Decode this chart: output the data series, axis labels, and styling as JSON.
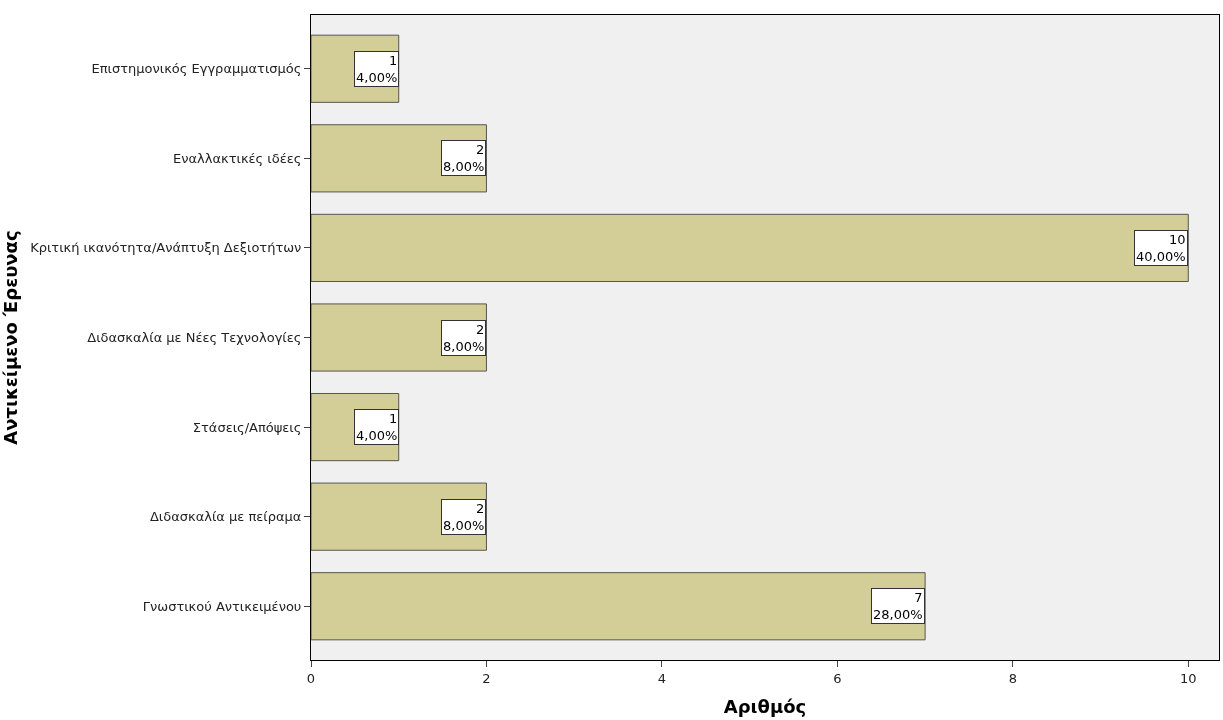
{
  "chart_data": {
    "type": "bar",
    "orientation": "horizontal",
    "xlabel": "Αριθμός",
    "ylabel": "Αντικείμενο Έρευνας",
    "categories": [
      "Επιστημονικός Εγγραμματισμός",
      "Εναλλακτικές ιδέες",
      "Κριτική ικανότητα/Ανάπτυξη Δεξιοτήτων",
      "Διδασκαλία με Νέες Τεχνολογίες",
      "Στάσεις/Απόψεις",
      "Διδασκαλία με πείραμα",
      "Γνωστικού Αντικειμένου"
    ],
    "values": [
      1,
      2,
      10,
      2,
      1,
      2,
      7
    ],
    "value_labels": [
      "1\n4,00%",
      "2\n8,00%",
      "10\n40,00%",
      "2\n8,00%",
      "1\n4,00%",
      "2\n8,00%",
      "7\n28,00%"
    ],
    "color": "#d3ce97",
    "xlim": [
      0,
      10.35
    ],
    "xticks": [
      0,
      2,
      4,
      6,
      8,
      10
    ],
    "grid": false,
    "legend": false
  }
}
